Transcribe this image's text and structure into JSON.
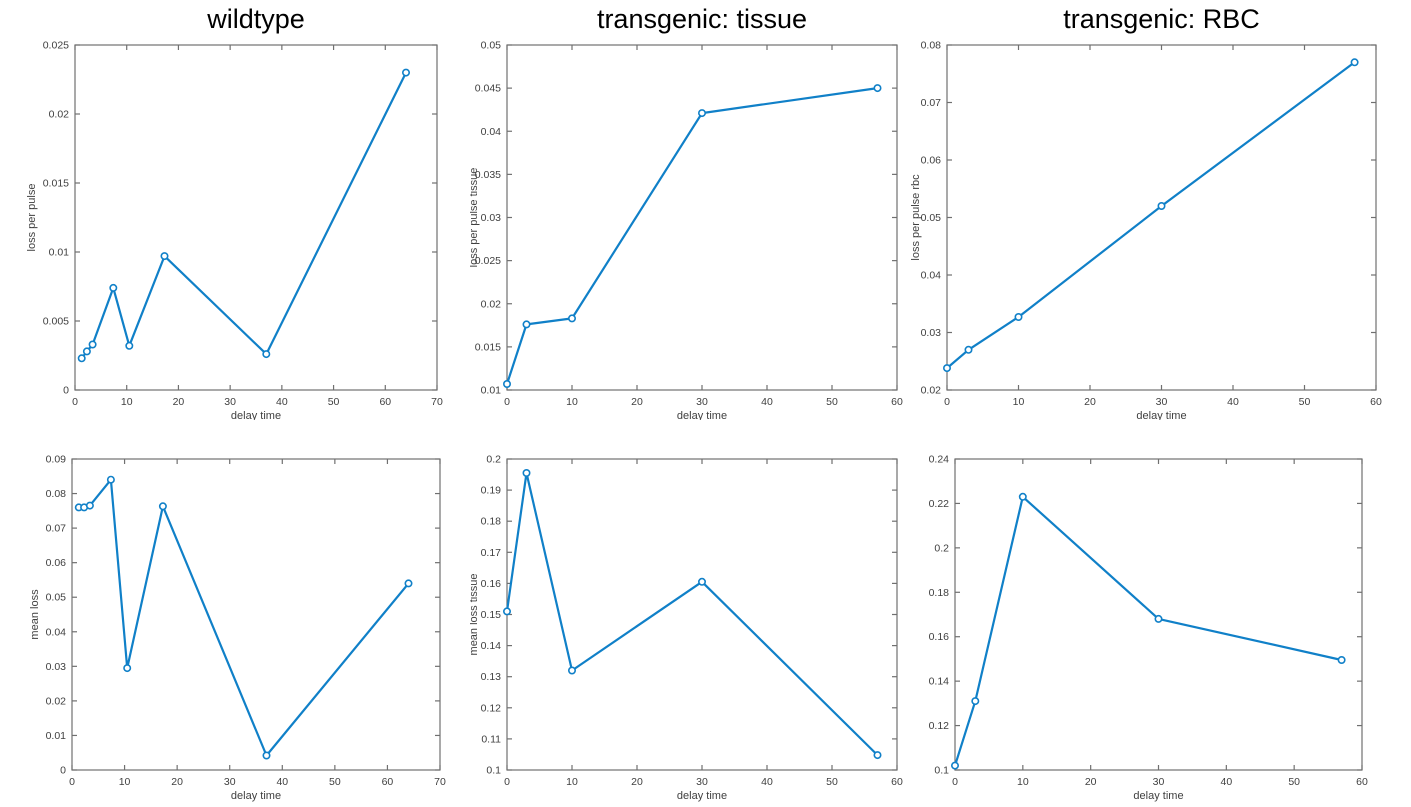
{
  "figure": {
    "background": "#ffffff",
    "line_color": "#1080c8",
    "marker_fill": "#ffffff",
    "axis_color": "#707070",
    "tick_text_color": "#3f3f3f",
    "title_color": "#000000"
  },
  "chart_data": [
    {
      "type": "line",
      "id": "wildtype-loss-per-pulse",
      "title": "wildtype",
      "xlabel": "delay time",
      "ylabel": "loss per pulse",
      "x": [
        1.3,
        2.3,
        3.4,
        7.4,
        10.5,
        17.3,
        37,
        64
      ],
      "y": [
        0.0023,
        0.0028,
        0.0033,
        0.0074,
        0.0032,
        0.0097,
        0.0026,
        0.023
      ],
      "xlim": [
        0,
        70
      ],
      "ylim": [
        0,
        0.025
      ],
      "xticks": [
        0,
        10,
        20,
        30,
        40,
        50,
        60,
        70
      ],
      "xtick_labels": [
        "0",
        "10",
        "20",
        "30",
        "40",
        "50",
        "60",
        "70"
      ],
      "yticks": [
        0,
        0.005,
        0.01,
        0.015,
        0.02,
        0.025
      ],
      "ytick_labels": [
        "0",
        "0.005",
        "0.01",
        "0.015",
        "0.02",
        "0.025"
      ],
      "marker": "open-circle",
      "grid": false,
      "legend": false
    },
    {
      "type": "line",
      "id": "transgenic-tissue-loss-per-pulse",
      "title": "transgenic: tissue",
      "xlabel": "delay time",
      "ylabel": "loss per pulse tissue",
      "x": [
        0,
        3,
        10,
        30,
        57
      ],
      "y": [
        0.0107,
        0.0176,
        0.0183,
        0.0421,
        0.045
      ],
      "xlim": [
        0,
        60
      ],
      "ylim": [
        0.01,
        0.05
      ],
      "xticks": [
        0,
        10,
        20,
        30,
        40,
        50,
        60
      ],
      "xtick_labels": [
        "0",
        "10",
        "20",
        "30",
        "40",
        "50",
        "60"
      ],
      "yticks": [
        0.01,
        0.015,
        0.02,
        0.025,
        0.03,
        0.035,
        0.04,
        0.045,
        0.05
      ],
      "ytick_labels": [
        "0.01",
        "0.015",
        "0.02",
        "0.025",
        "0.03",
        "0.035",
        "0.04",
        "0.045",
        "0.05"
      ],
      "marker": "open-circle",
      "grid": false,
      "legend": false
    },
    {
      "type": "line",
      "id": "transgenic-rbc-loss-per-pulse",
      "title": "transgenic: RBC",
      "xlabel": "delay time",
      "ylabel": "loss per pulse rbc",
      "x": [
        0,
        3,
        10,
        30,
        57
      ],
      "y": [
        0.0238,
        0.027,
        0.0327,
        0.052,
        0.077
      ],
      "xlim": [
        0,
        60
      ],
      "ylim": [
        0.02,
        0.08
      ],
      "xticks": [
        0,
        10,
        20,
        30,
        40,
        50,
        60
      ],
      "xtick_labels": [
        "0",
        "10",
        "20",
        "30",
        "40",
        "50",
        "60"
      ],
      "yticks": [
        0.02,
        0.03,
        0.04,
        0.05,
        0.06,
        0.07,
        0.08
      ],
      "ytick_labels": [
        "0.02",
        "0.03",
        "0.04",
        "0.05",
        "0.06",
        "0.07",
        "0.08"
      ],
      "marker": "open-circle",
      "grid": false,
      "legend": false
    },
    {
      "type": "line",
      "id": "wildtype-mean-loss",
      "title": "",
      "xlabel": "delay time",
      "ylabel": "mean loss",
      "x": [
        1.3,
        2.3,
        3.4,
        7.4,
        10.5,
        17.3,
        37,
        64
      ],
      "y": [
        0.076,
        0.076,
        0.0765,
        0.084,
        0.0295,
        0.0763,
        0.0042,
        0.054
      ],
      "xlim": [
        0,
        70
      ],
      "ylim": [
        0,
        0.09
      ],
      "xticks": [
        0,
        10,
        20,
        30,
        40,
        50,
        60,
        70
      ],
      "xtick_labels": [
        "0",
        "10",
        "20",
        "30",
        "40",
        "50",
        "60",
        "70"
      ],
      "yticks": [
        0,
        0.01,
        0.02,
        0.03,
        0.04,
        0.05,
        0.06,
        0.07,
        0.08,
        0.09
      ],
      "ytick_labels": [
        "0",
        "0.01",
        "0.02",
        "0.03",
        "0.04",
        "0.05",
        "0.06",
        "0.07",
        "0.08",
        "0.09"
      ],
      "marker": "open-circle",
      "grid": false,
      "legend": false
    },
    {
      "type": "line",
      "id": "transgenic-tissue-mean-loss",
      "title": "",
      "xlabel": "delay time",
      "ylabel": "mean loss tissue",
      "x": [
        0,
        3,
        10,
        30,
        57
      ],
      "y": [
        0.151,
        0.1955,
        0.132,
        0.1605,
        0.1048
      ],
      "xlim": [
        0,
        60
      ],
      "ylim": [
        0.1,
        0.2
      ],
      "xticks": [
        0,
        10,
        20,
        30,
        40,
        50,
        60
      ],
      "xtick_labels": [
        "0",
        "10",
        "20",
        "30",
        "40",
        "50",
        "60"
      ],
      "yticks": [
        0.1,
        0.11,
        0.12,
        0.13,
        0.14,
        0.15,
        0.16,
        0.17,
        0.18,
        0.19,
        0.2
      ],
      "ytick_labels": [
        "0.1",
        "0.11",
        "0.12",
        "0.13",
        "0.14",
        "0.15",
        "0.16",
        "0.17",
        "0.18",
        "0.19",
        "0.2"
      ],
      "marker": "open-circle",
      "grid": false,
      "legend": false
    },
    {
      "type": "line",
      "id": "transgenic-rbc-mean-loss",
      "title": "",
      "xlabel": "delay time",
      "ylabel": "",
      "x": [
        0,
        3,
        10,
        30,
        57
      ],
      "y": [
        0.102,
        0.131,
        0.223,
        0.168,
        0.1495
      ],
      "xlim": [
        0,
        60
      ],
      "ylim": [
        0.1,
        0.24
      ],
      "xticks": [
        0,
        10,
        20,
        30,
        40,
        50,
        60
      ],
      "xtick_labels": [
        "0",
        "10",
        "20",
        "30",
        "40",
        "50",
        "60"
      ],
      "yticks": [
        0.1,
        0.12,
        0.14,
        0.16,
        0.18,
        0.2,
        0.22,
        0.24
      ],
      "ytick_labels": [
        "0.1",
        "0.12",
        "0.14",
        "0.16",
        "0.18",
        "0.2",
        "0.22",
        "0.24"
      ],
      "marker": "open-circle",
      "grid": false,
      "legend": false
    }
  ]
}
